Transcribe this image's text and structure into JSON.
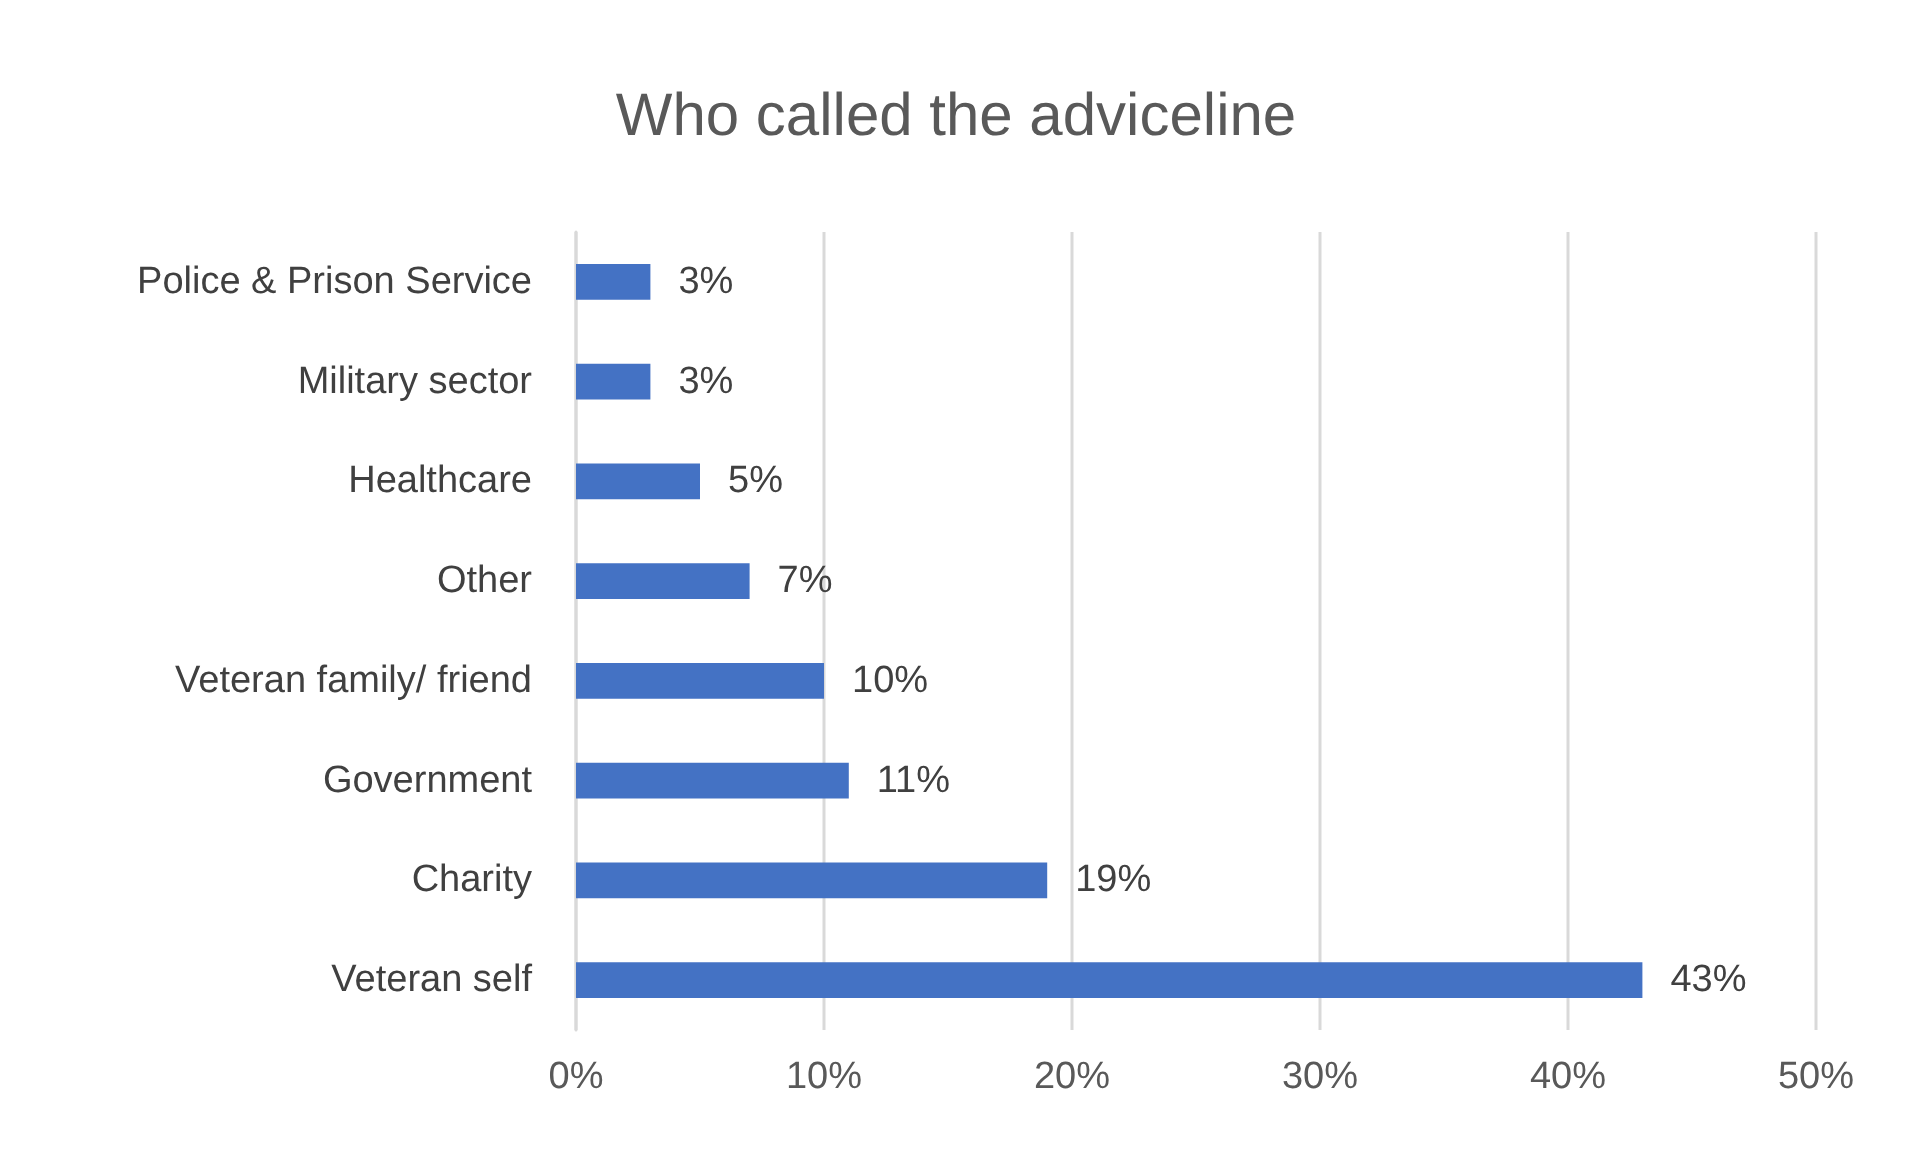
{
  "chart_data": {
    "type": "bar",
    "orientation": "horizontal",
    "title": "Who called the adviceline",
    "categories": [
      "Police & Prison Service",
      "Military sector",
      "Healthcare",
      "Other",
      "Veteran family/ friend",
      "Government",
      "Charity",
      "Veteran self"
    ],
    "values": [
      3,
      3,
      5,
      7,
      10,
      11,
      19,
      43
    ],
    "value_labels": [
      "3%",
      "3%",
      "5%",
      "7%",
      "10%",
      "11%",
      "19%",
      "43%"
    ],
    "color": "#4472c4",
    "xlim": [
      0,
      50
    ],
    "xticks": [
      {
        "value": 0,
        "label": "0%"
      },
      {
        "value": 10,
        "label": "10%"
      },
      {
        "value": 20,
        "label": "20%"
      },
      {
        "value": 30,
        "label": "30%"
      },
      {
        "value": 40,
        "label": "40%"
      },
      {
        "value": 50,
        "label": "50%"
      }
    ],
    "grid": "x"
  }
}
